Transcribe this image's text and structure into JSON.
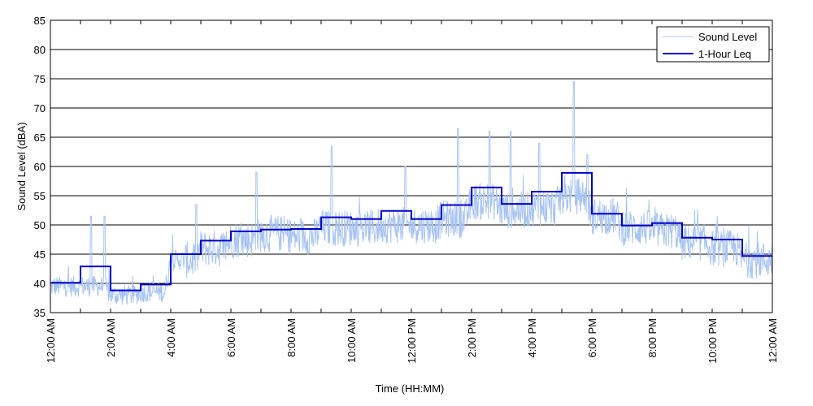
{
  "chart_data": {
    "type": "line",
    "title": "",
    "xlabel": "Time (HH:MM)",
    "ylabel": "Sound Level (dBA)",
    "xlim": [
      0,
      24
    ],
    "ylim": [
      35,
      85
    ],
    "yticks": [
      35,
      40,
      45,
      50,
      55,
      60,
      65,
      70,
      75,
      80,
      85
    ],
    "xticks": [
      {
        "hour": 0,
        "label": "12:00 AM"
      },
      {
        "hour": 2,
        "label": "2:00 AM"
      },
      {
        "hour": 4,
        "label": "4:00 AM"
      },
      {
        "hour": 6,
        "label": "6:00 AM"
      },
      {
        "hour": 8,
        "label": "8:00 AM"
      },
      {
        "hour": 10,
        "label": "10:00 AM"
      },
      {
        "hour": 12,
        "label": "12:00 PM"
      },
      {
        "hour": 14,
        "label": "2:00 PM"
      },
      {
        "hour": 16,
        "label": "4:00 PM"
      },
      {
        "hour": 18,
        "label": "6:00 PM"
      },
      {
        "hour": 20,
        "label": "8:00 PM"
      },
      {
        "hour": 22,
        "label": "10:00 PM"
      },
      {
        "hour": 24,
        "label": "12:00 AM"
      }
    ],
    "grid": "horizontal",
    "legend": "top-right",
    "series": [
      {
        "name": "Sound Level",
        "color": "#a9c4f2",
        "style": "thin-line",
        "hourly_mean": [
          39.5,
          39.5,
          38.0,
          38.5,
          44.0,
          46.0,
          47.5,
          48.5,
          48.0,
          49.5,
          49.5,
          50.0,
          50.0,
          51.0,
          54.0,
          52.5,
          53.0,
          55.0,
          51.5,
          49.5,
          49.0,
          47.0,
          46.0,
          44.0
        ],
        "spikes": [
          {
            "hour": 1.35,
            "value": 51.5
          },
          {
            "hour": 1.8,
            "value": 51.5
          },
          {
            "hour": 4.85,
            "value": 53.5
          },
          {
            "hour": 6.85,
            "value": 59.0
          },
          {
            "hour": 9.35,
            "value": 63.5
          },
          {
            "hour": 11.8,
            "value": 60.0
          },
          {
            "hour": 13.55,
            "value": 66.5
          },
          {
            "hour": 14.6,
            "value": 66.0
          },
          {
            "hour": 15.3,
            "value": 66.0
          },
          {
            "hour": 16.25,
            "value": 64.0
          },
          {
            "hour": 17.4,
            "value": 74.5
          },
          {
            "hour": 17.85,
            "value": 62.0
          }
        ]
      },
      {
        "name": "1-Hour Leq",
        "color": "#0000cc",
        "style": "step",
        "values": [
          40.1,
          42.9,
          38.8,
          39.8,
          45.0,
          47.3,
          48.9,
          49.2,
          49.3,
          51.3,
          51.0,
          52.4,
          51.0,
          53.4,
          56.4,
          53.6,
          55.7,
          58.9,
          51.9,
          49.9,
          50.3,
          47.8,
          47.5,
          44.7
        ]
      }
    ]
  }
}
